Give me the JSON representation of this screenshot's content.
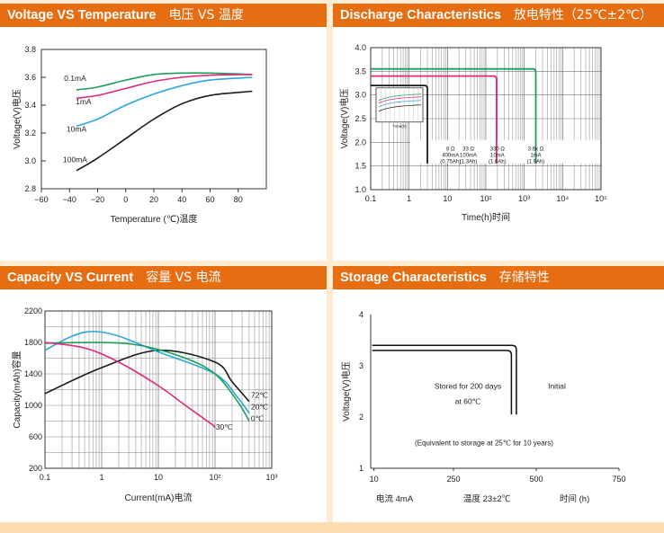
{
  "panels": [
    {
      "title_en": "Voltage VS Temperature",
      "title_cn": "电压 VS 温度"
    },
    {
      "title_en": "Discharge Characteristics",
      "title_cn": "放电特性（25℃±2℃）"
    },
    {
      "title_en": "Capacity VS Current",
      "title_cn": "容量 VS 电流"
    },
    {
      "title_en": "Storage Characteristics",
      "title_cn": "存储特性"
    }
  ],
  "colors": {
    "header": "#e66d12",
    "background": "#fdebd2",
    "green": "#1e9e5a",
    "magenta": "#e0287f",
    "cyan": "#2aa7d8",
    "black": "#1a1a1a"
  },
  "chart_data": [
    {
      "type": "line",
      "title": "",
      "xlabel": "Temperature (℃)温度",
      "ylabel": "Voltage(V)电压",
      "xlim": [
        -60,
        100
      ],
      "ylim": [
        2.8,
        3.8
      ],
      "xticks": [
        -60,
        -40,
        -20,
        0,
        20,
        40,
        60,
        80
      ],
      "yticks": [
        2.8,
        3.0,
        3.2,
        3.4,
        3.6,
        3.8
      ],
      "series": [
        {
          "name": "0.1mA",
          "color": "green",
          "x": [
            -35,
            -20,
            0,
            20,
            40,
            60,
            90
          ],
          "y": [
            3.51,
            3.53,
            3.58,
            3.62,
            3.63,
            3.63,
            3.62
          ]
        },
        {
          "name": "1mA",
          "color": "magenta",
          "x": [
            -35,
            -20,
            0,
            20,
            40,
            60,
            90
          ],
          "y": [
            3.45,
            3.47,
            3.52,
            3.57,
            3.6,
            3.615,
            3.62
          ]
        },
        {
          "name": "10mA",
          "color": "cyan",
          "x": [
            -35,
            -20,
            0,
            20,
            40,
            60,
            90
          ],
          "y": [
            3.25,
            3.3,
            3.4,
            3.48,
            3.54,
            3.58,
            3.6
          ]
        },
        {
          "name": "100mA",
          "color": "black",
          "x": [
            -35,
            -20,
            0,
            20,
            40,
            60,
            90
          ],
          "y": [
            2.93,
            3.02,
            3.16,
            3.3,
            3.41,
            3.47,
            3.5
          ]
        }
      ]
    },
    {
      "type": "line",
      "title": "",
      "xlabel": "Time(h)时间",
      "ylabel": "Voltage(V)电压",
      "xscale": "log",
      "xlim": [
        0.1,
        100000
      ],
      "ylim": [
        1.0,
        4.0
      ],
      "xticks": [
        "0.1",
        "1",
        "10",
        "10²",
        "10³",
        "10⁴",
        "10⁵"
      ],
      "yticks": [
        1.0,
        1.5,
        2.0,
        2.5,
        3.0,
        3.5,
        4.0
      ],
      "series": [
        {
          "name": "3.6kΩ",
          "color": "green",
          "x": [
            0.1,
            2000
          ],
          "y": [
            3.55,
            3.55
          ]
        },
        {
          "name": "330Ω",
          "color": "magenta",
          "x": [
            0.1,
            190
          ],
          "y": [
            3.4,
            3.4
          ]
        },
        {
          "name": "8Ω",
          "color": "black",
          "x": [
            0.1,
            3
          ],
          "y": [
            3.2,
            3.2
          ]
        }
      ],
      "annotations": [
        {
          "lines": [
            "8 Ω",
            "400mA",
            "(0.75Ah)"
          ],
          "x": 12
        },
        {
          "lines": [
            "33 Ω",
            "100mA",
            "(1.3Ah)"
          ],
          "x": 35
        },
        {
          "lines": [
            "330 Ω",
            "10mA",
            "(1.6Ah)"
          ],
          "x": 200
        },
        {
          "lines": [
            "3.6k Ω",
            "1mA",
            "(1.9Ah)"
          ],
          "x": 2000
        }
      ],
      "inset_label": "Time(h)"
    },
    {
      "type": "line",
      "title": "",
      "xlabel": "Current(mA)电流",
      "ylabel": "Capacity(mAh)容量",
      "xscale": "log",
      "xlim": [
        0.1,
        1000
      ],
      "ylim": [
        200,
        2200
      ],
      "xticks": [
        "0.1",
        "1",
        "10",
        "10²",
        "10³"
      ],
      "yticks": [
        200,
        600,
        1000,
        1400,
        1800,
        2200
      ],
      "series": [
        {
          "name": "72℃",
          "color": "black",
          "x": [
            0.1,
            1,
            10,
            100,
            200,
            400
          ],
          "y": [
            1150,
            1480,
            1700,
            1550,
            1300,
            1050
          ]
        },
        {
          "name": "20℃",
          "color": "cyan",
          "x": [
            0.1,
            0.3,
            0.7,
            2,
            10,
            100,
            250,
            400
          ],
          "y": [
            1700,
            1880,
            1940,
            1880,
            1680,
            1400,
            1100,
            900
          ]
        },
        {
          "name": "0℃",
          "color": "green",
          "x": [
            0.1,
            1,
            5,
            30,
            100,
            250,
            400
          ],
          "y": [
            1790,
            1800,
            1760,
            1600,
            1400,
            1050,
            800
          ]
        },
        {
          "name": "-30℃",
          "color": "magenta",
          "x": [
            0.1,
            0.5,
            2,
            10,
            30,
            100
          ],
          "y": [
            1800,
            1730,
            1550,
            1250,
            1000,
            730
          ]
        }
      ]
    },
    {
      "type": "line",
      "title": "",
      "xlabel": "",
      "ylabel": "Voltage(V)电压",
      "xlim": [
        0,
        750
      ],
      "ylim": [
        1,
        4
      ],
      "xticks": [
        10,
        250,
        500,
        750
      ],
      "yticks": [
        1,
        2,
        3,
        4
      ],
      "series": [
        {
          "name": "",
          "x": [
            10,
            440,
            440
          ],
          "y": [
            3.4,
            3.4,
            2.05
          ]
        },
        {
          "name": "",
          "x": [
            10,
            425,
            425
          ],
          "y": [
            3.3,
            3.3,
            2.05
          ]
        }
      ],
      "annotations": [
        "Stored for 200 days",
        "at 60℃",
        "Initial",
        "(Equivalent to storage at 25℃ for 10 years)"
      ],
      "footer": [
        "电流  4mA",
        "温度  23±2℃",
        "时间 (h)"
      ]
    }
  ]
}
